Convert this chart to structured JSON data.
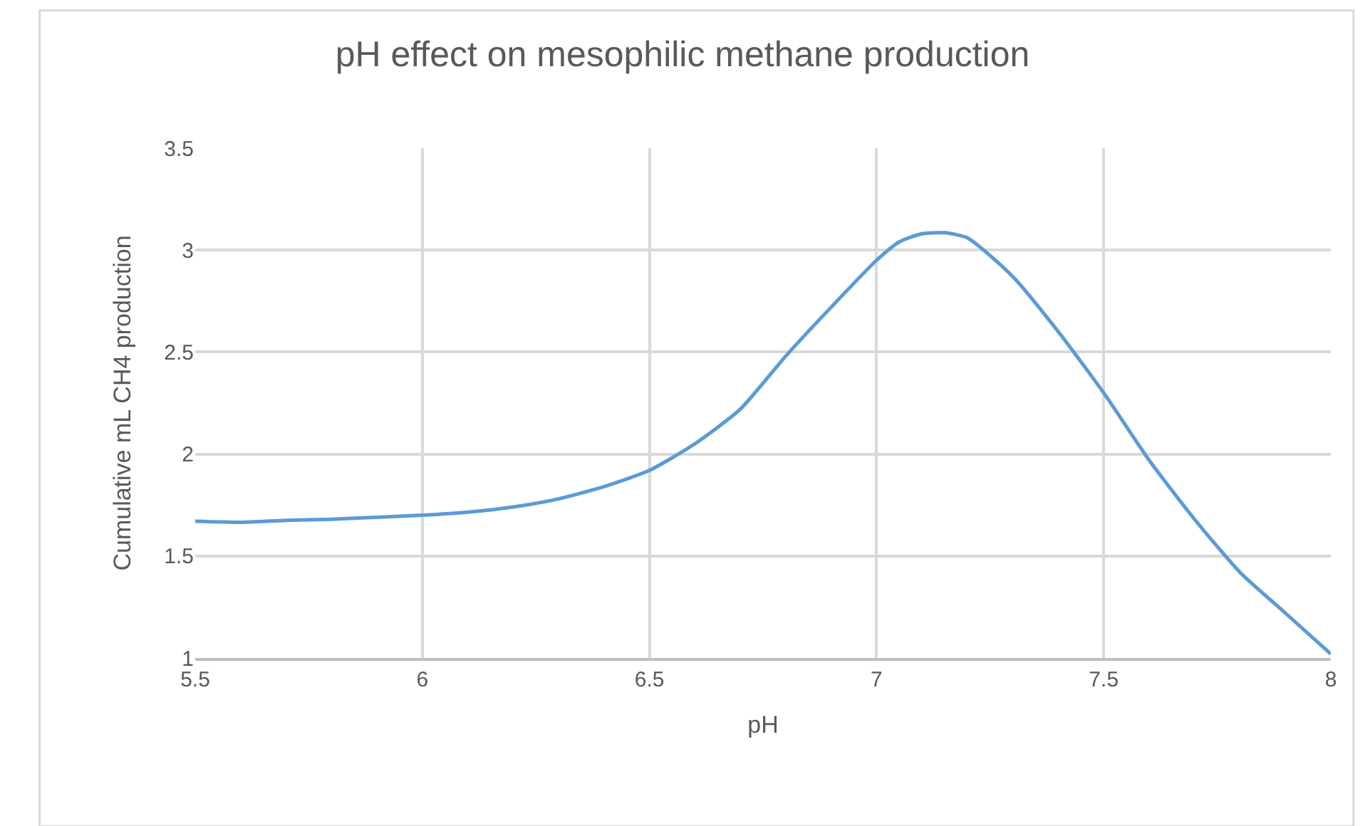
{
  "chart_data": {
    "type": "line",
    "title": "pH effect on mesophilic methane production",
    "xlabel": "pH",
    "ylabel": "Cumulative mL CH4 production",
    "x": [
      5.5,
      5.6,
      5.7,
      5.8,
      5.9,
      6.0,
      6.1,
      6.2,
      6.3,
      6.4,
      6.5,
      6.6,
      6.7,
      6.8,
      6.9,
      7.0,
      7.05,
      7.1,
      7.15,
      7.2,
      7.3,
      7.4,
      7.5,
      7.6,
      7.7,
      7.8,
      7.9,
      8.0
    ],
    "series": [
      {
        "color": "#5b9bd5",
        "values": [
          1.67,
          1.665,
          1.675,
          1.68,
          1.69,
          1.7,
          1.715,
          1.74,
          1.78,
          1.84,
          1.92,
          2.05,
          2.22,
          2.48,
          2.72,
          2.95,
          3.04,
          3.08,
          3.085,
          3.06,
          2.87,
          2.6,
          2.3,
          1.97,
          1.68,
          1.42,
          1.22,
          1.02
        ]
      }
    ],
    "xlim": [
      5.5,
      8
    ],
    "xticks": [
      5.5,
      6,
      6.5,
      7,
      7.5,
      8
    ],
    "ylim": [
      1,
      3.5
    ],
    "yticks": [
      1,
      1.5,
      2,
      2.5,
      3,
      3.5
    ],
    "grid": true,
    "legend": false,
    "marker": "none",
    "line_style": "solid"
  }
}
